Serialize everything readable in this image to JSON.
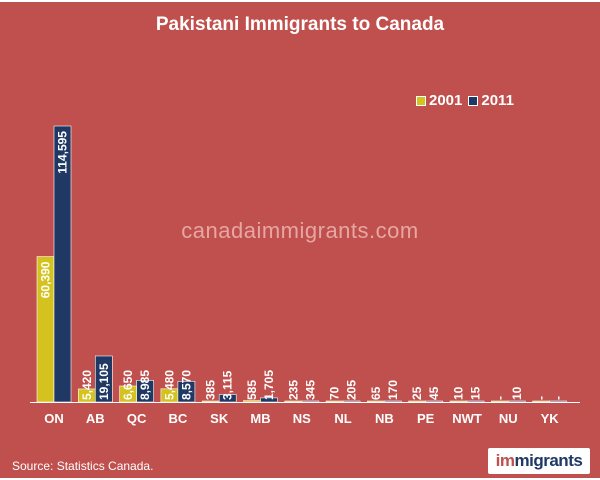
{
  "header": {
    "title": "Pakistani Immigrants to Canada"
  },
  "watermark": "canadaimmigrants.com",
  "footer": {
    "source": "Source: Statistics Canada.",
    "logo_prefix": "im",
    "logo_suffix": "migrants"
  },
  "colors": {
    "background": "#c0504d",
    "series_2001": "#d4c21f",
    "series_2011": "#1f3864",
    "text": "#ffffff"
  },
  "chart_data": {
    "type": "bar",
    "title": "Pakistani Immigrants to Canada",
    "xlabel": "",
    "ylabel": "",
    "ylim": [
      0,
      120000
    ],
    "grid": false,
    "legend": "top-right",
    "categories": [
      "ON",
      "AB",
      "QC",
      "BC",
      "SK",
      "MB",
      "NS",
      "NL",
      "NB",
      "PE",
      "NWT",
      "NU",
      "YK"
    ],
    "series": [
      {
        "name": "2001",
        "color": "#d4c21f",
        "values": [
          60390,
          5420,
          6650,
          5480,
          385,
          585,
          235,
          70,
          65,
          25,
          10,
          0,
          0
        ],
        "labels": [
          "60,390",
          "5,420",
          "6,650",
          "5,480",
          "385",
          "585",
          "235",
          "70",
          "65",
          "25",
          "10",
          "-",
          "-"
        ]
      },
      {
        "name": "2011",
        "color": "#1f3864",
        "values": [
          114595,
          19105,
          8985,
          8570,
          3115,
          1705,
          345,
          205,
          170,
          45,
          15,
          10,
          0
        ],
        "labels": [
          "114,595",
          "19,105",
          "8,985",
          "8,570",
          "3,115",
          "1,705",
          "345",
          "205",
          "170",
          "45",
          "15",
          "10",
          "-"
        ]
      }
    ]
  }
}
